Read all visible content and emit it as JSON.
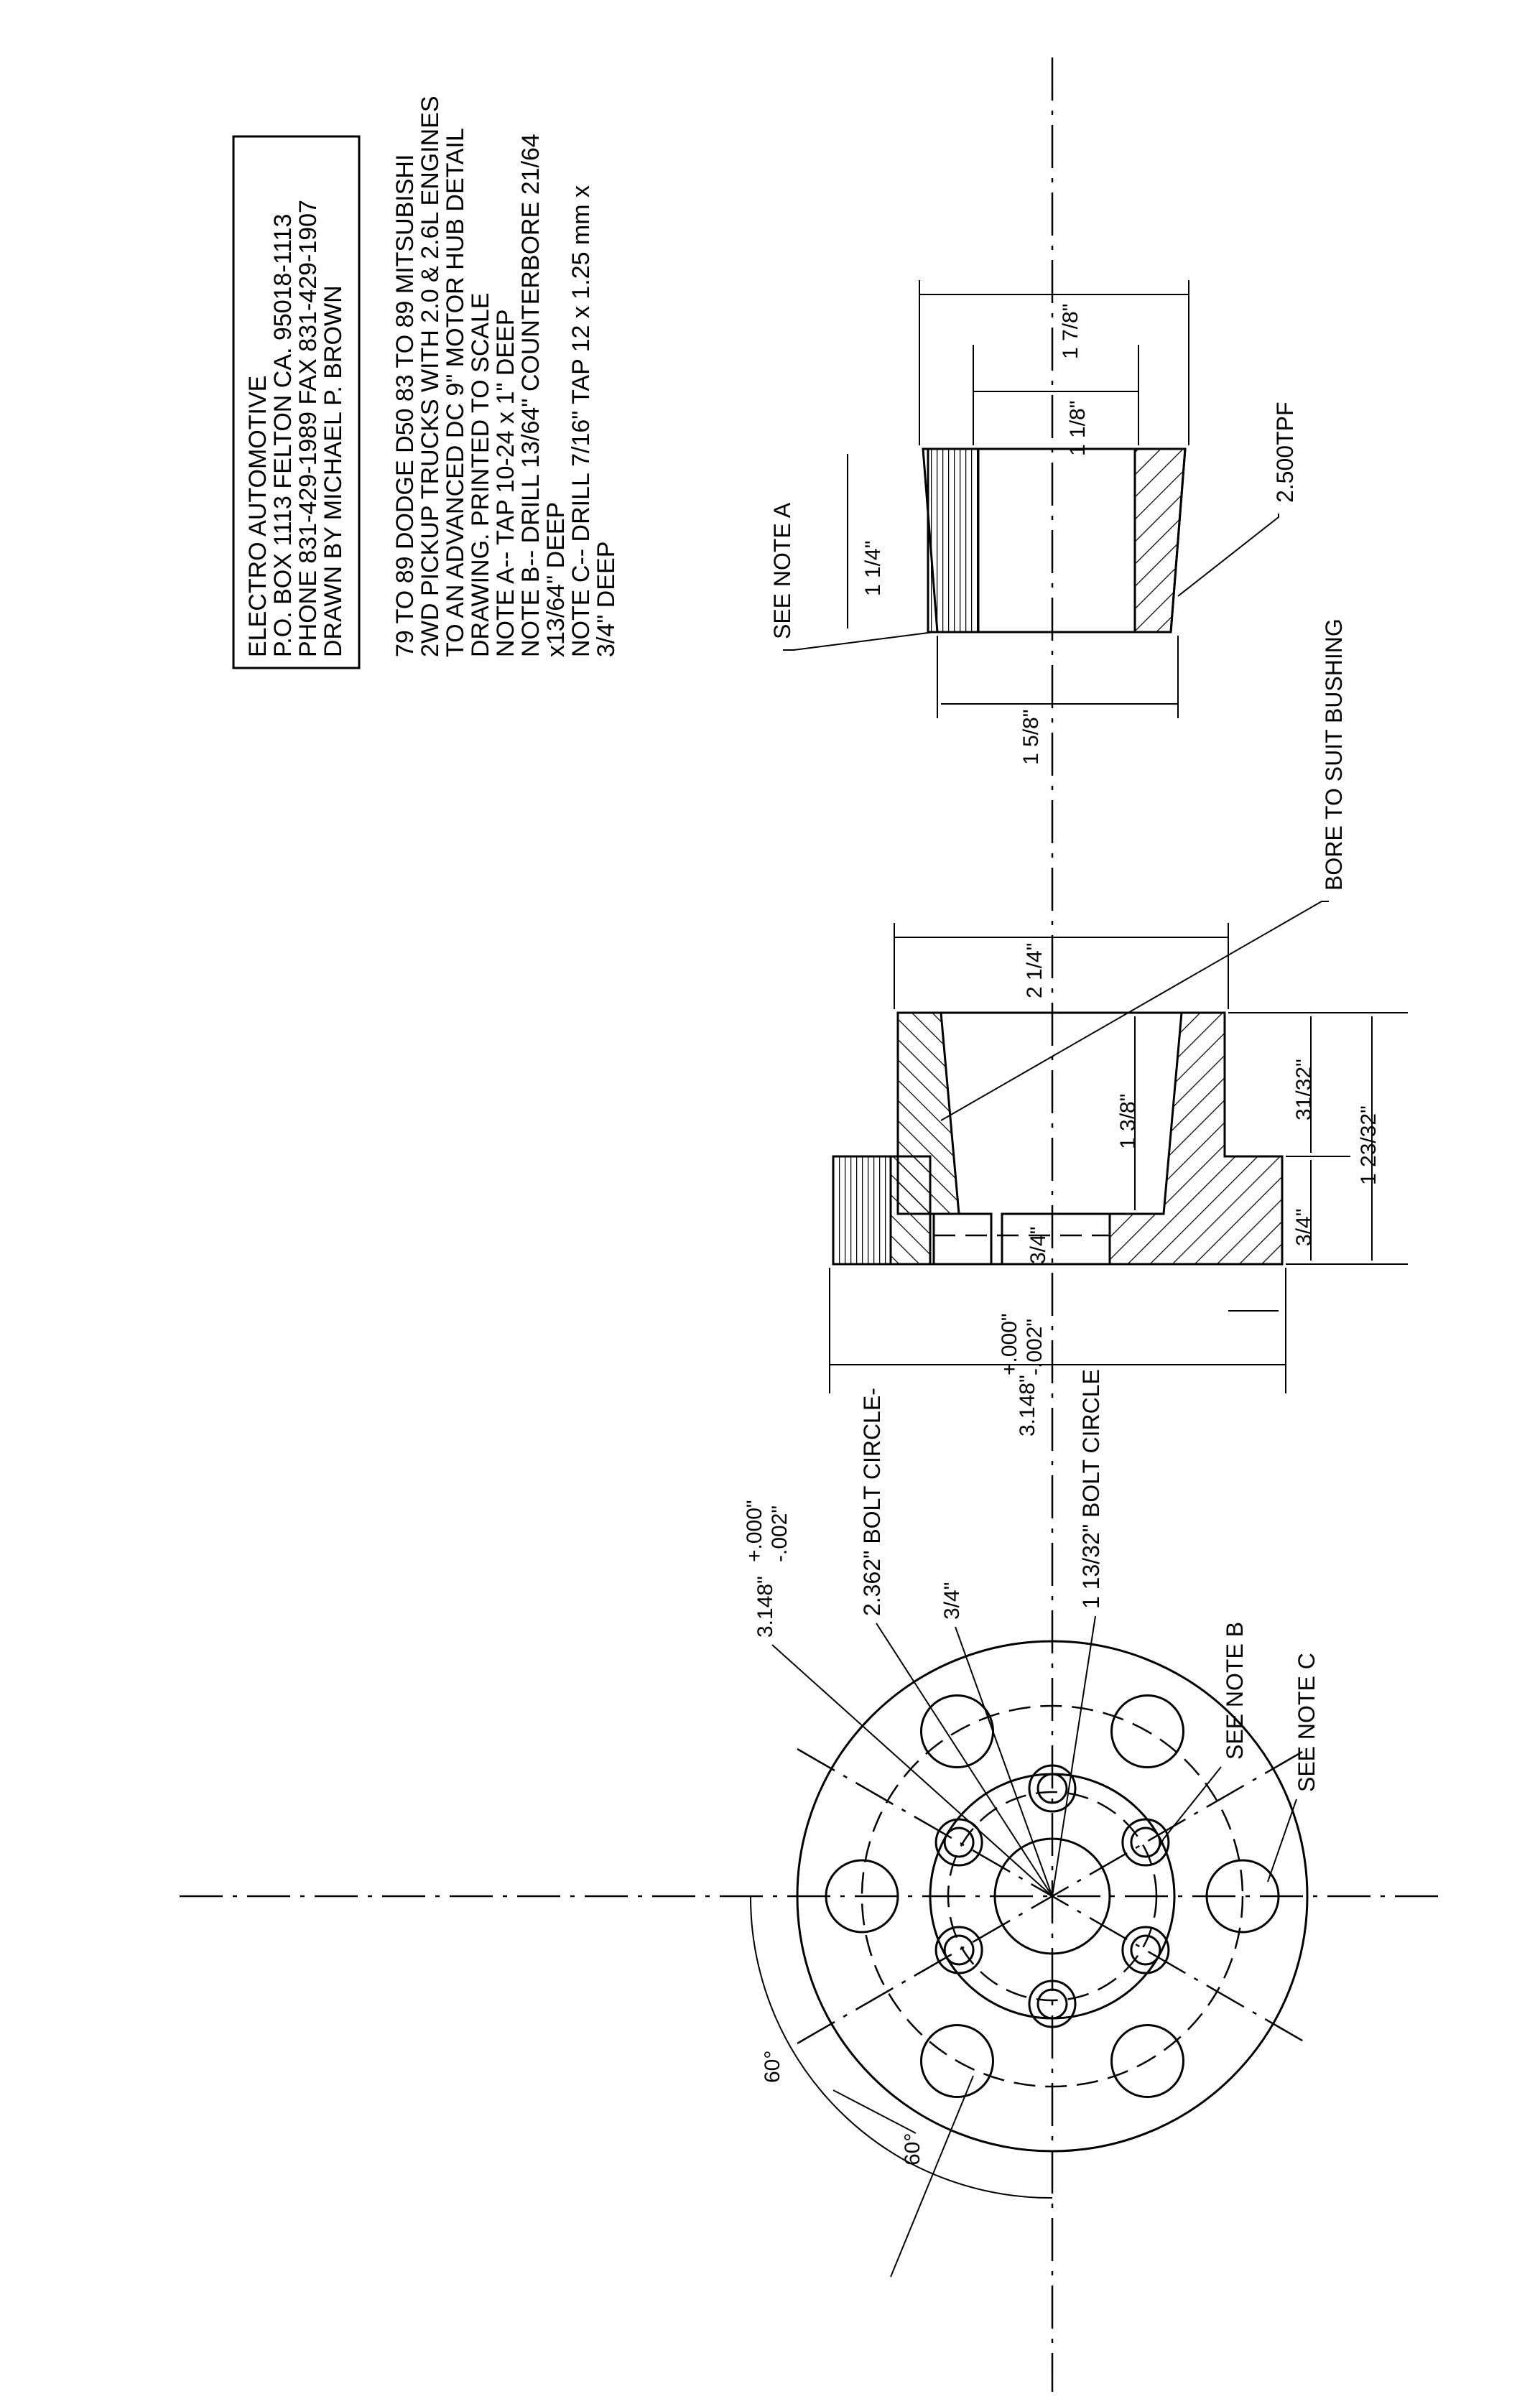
{
  "title_block": {
    "line1": "ELECTRO AUTOMOTIVE",
    "line2": "P.O. BOX 1113 FELTON CA. 95018-1113",
    "line3": "PHONE 831-429-1989 FAX 831-429-1907",
    "line4": "DRAWN BY MICHAEL P. BROWN"
  },
  "notes": [
    "79 TO 89 DODGE D50 83 TO 89 MITSUBISHI",
    "2WD PICKUP TRUCKS WITH 2.0 & 2.6L ENGINES",
    "TO AN ADVANCED DC 9\" MOTOR HUB DETAIL",
    "DRAWING.  PRINTED TO SCALE",
    "NOTE A-- TAP 10-24 x 1\" DEEP",
    "NOTE B-- DRILL 13/64\" COUNTERBORE 21/64",
    "x13/64\" DEEP",
    "NOTE C-- DRILL 7/16\" TAP 12 x 1.25 mm x",
    "3/4\" DEEP"
  ],
  "bushing": {
    "dim_outer_length": "1 7/8\"",
    "dim_inner_length": "1 1/8\"",
    "dim_top": "1 1/4\"",
    "dim_bottom": "1 5/8\"",
    "see_note_a": "SEE NOTE A",
    "taper": "2.500TPF"
  },
  "hub": {
    "bore_label": "BORE TO SUIT BUSHING",
    "dim_width": "2 1/4\"",
    "dim_bore": "1 3/8\"",
    "dim_31_32": "31/32\"",
    "dim_1_23_32": "1 23/32\"",
    "dim_3_4_left": "3/4\"",
    "dim_3_4_inner": "3/4\"",
    "dim_diameter": "3.148\"",
    "dim_diameter_tol_plus": "+.000\"",
    "dim_diameter_tol_minus": "-.002\""
  },
  "front_view": {
    "dia_label": "3.148\"",
    "dia_tol_plus": "+.000\"",
    "dia_tol_minus": "-.002\"",
    "bolt_circle_2362": "2.362\" BOLT CIRCLE-",
    "dim_3_4": "3/4\"",
    "bolt_circle_1_13_32": "1 13/32\" BOLT CIRCLE",
    "see_note_b": "SEE NOTE B",
    "see_note_c": "SEE NOTE C",
    "angle_1": "60°",
    "angle_2": "60°"
  }
}
